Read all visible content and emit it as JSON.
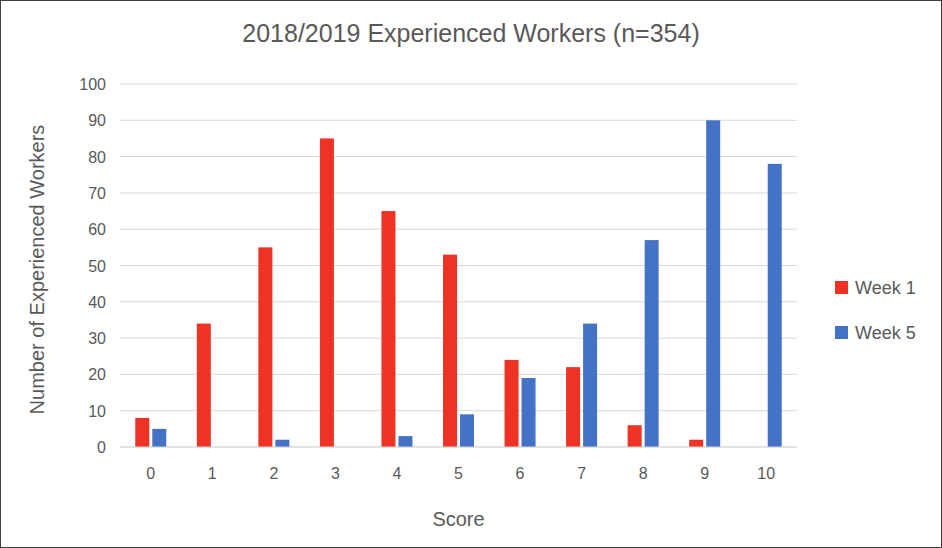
{
  "chart_data": {
    "type": "bar",
    "title": "2018/2019 Experienced Workers (n=354)",
    "x_label": "Score",
    "y_label": "Number of Experienced Workers",
    "categories": [
      "0",
      "1",
      "2",
      "3",
      "4",
      "5",
      "6",
      "7",
      "8",
      "9",
      "10"
    ],
    "series": [
      {
        "name": "Week 1",
        "color": "#ee3224",
        "values": [
          8,
          34,
          55,
          85,
          65,
          53,
          24,
          22,
          6,
          2,
          0
        ]
      },
      {
        "name": "Week 5",
        "color": "#4472c4",
        "values": [
          5,
          0,
          2,
          0,
          3,
          9,
          19,
          34,
          57,
          90,
          78
        ]
      }
    ],
    "ylim": [
      0,
      100
    ],
    "yticks": [
      0,
      10,
      20,
      30,
      40,
      50,
      60,
      70,
      80,
      90,
      100
    ],
    "grid": true,
    "legend": "right"
  }
}
